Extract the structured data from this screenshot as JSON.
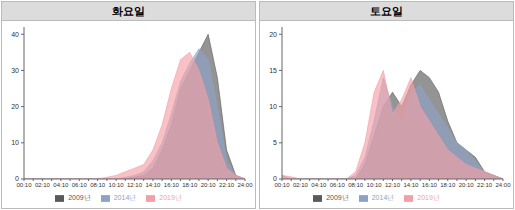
{
  "chart_data": [
    {
      "type": "area",
      "title": "화요일",
      "categories": [
        "00:10",
        null,
        "02:10",
        null,
        "04:10",
        null,
        "06:10",
        null,
        "08:10",
        null,
        "10:10",
        null,
        "12:10",
        null,
        "14:10",
        null,
        "16:10",
        null,
        "18:10",
        null,
        "20:10",
        null,
        "22:10",
        null,
        "24:00"
      ],
      "series": [
        {
          "name": "2009년",
          "color": "#5a5a5a",
          "values": [
            0,
            0,
            0,
            0,
            0,
            0,
            0,
            0,
            0,
            0,
            0,
            0,
            0.5,
            1,
            3,
            8,
            15,
            25,
            30,
            35,
            40,
            28,
            8,
            1,
            0
          ]
        },
        {
          "name": "2014년",
          "color": "#8ea2c4",
          "values": [
            0,
            0,
            0,
            0,
            0,
            0,
            0,
            0,
            0,
            0,
            0,
            0.5,
            1,
            2,
            5,
            10,
            18,
            27,
            32,
            36,
            33,
            20,
            5,
            1,
            0
          ]
        },
        {
          "name": "2019년",
          "color": "#f2a0a8",
          "values": [
            0,
            0,
            0,
            0,
            0,
            0,
            0,
            0,
            0,
            0.5,
            1,
            2,
            3,
            4,
            8,
            15,
            25,
            33,
            35,
            30,
            22,
            10,
            3,
            1,
            0
          ]
        }
      ],
      "ylim": [
        0,
        42
      ],
      "yticks": [
        0,
        10,
        20,
        30,
        40
      ],
      "grid": false,
      "legend": "bottom"
    },
    {
      "type": "area",
      "title": "토요일",
      "categories": [
        "00:10",
        null,
        "02:10",
        null,
        "04:10",
        null,
        "06:10",
        null,
        "08:10",
        null,
        "10:10",
        null,
        "12:10",
        null,
        "14:10",
        null,
        "16:10",
        null,
        "18:10",
        null,
        "20:10",
        null,
        "22:10",
        null,
        "24:00"
      ],
      "series": [
        {
          "name": "2009년",
          "color": "#5a5a5a",
          "values": [
            0,
            0,
            0,
            0,
            0,
            0,
            0,
            0,
            0,
            2,
            6,
            10,
            12,
            10,
            13,
            15,
            14,
            12,
            8,
            5,
            4,
            3,
            1,
            0.5,
            0
          ]
        },
        {
          "name": "2014년",
          "color": "#8ea2c4",
          "values": [
            0.5,
            0,
            0,
            0,
            0,
            0,
            0,
            0,
            0.5,
            3,
            8,
            14,
            10,
            8,
            12,
            13,
            11,
            9,
            7,
            5,
            4,
            2.5,
            1,
            0.5,
            0
          ]
        },
        {
          "name": "2019년",
          "color": "#f2a0a8",
          "values": [
            0.5,
            0.3,
            0,
            0,
            0,
            0,
            0,
            0,
            1,
            5,
            12,
            15,
            9,
            11,
            14,
            10,
            8,
            6,
            4,
            3,
            2,
            1.5,
            1,
            0.5,
            0
          ]
        }
      ],
      "ylim": [
        0,
        21
      ],
      "yticks": [
        0,
        5,
        10,
        15,
        20
      ],
      "grid": false,
      "legend": "bottom"
    }
  ]
}
